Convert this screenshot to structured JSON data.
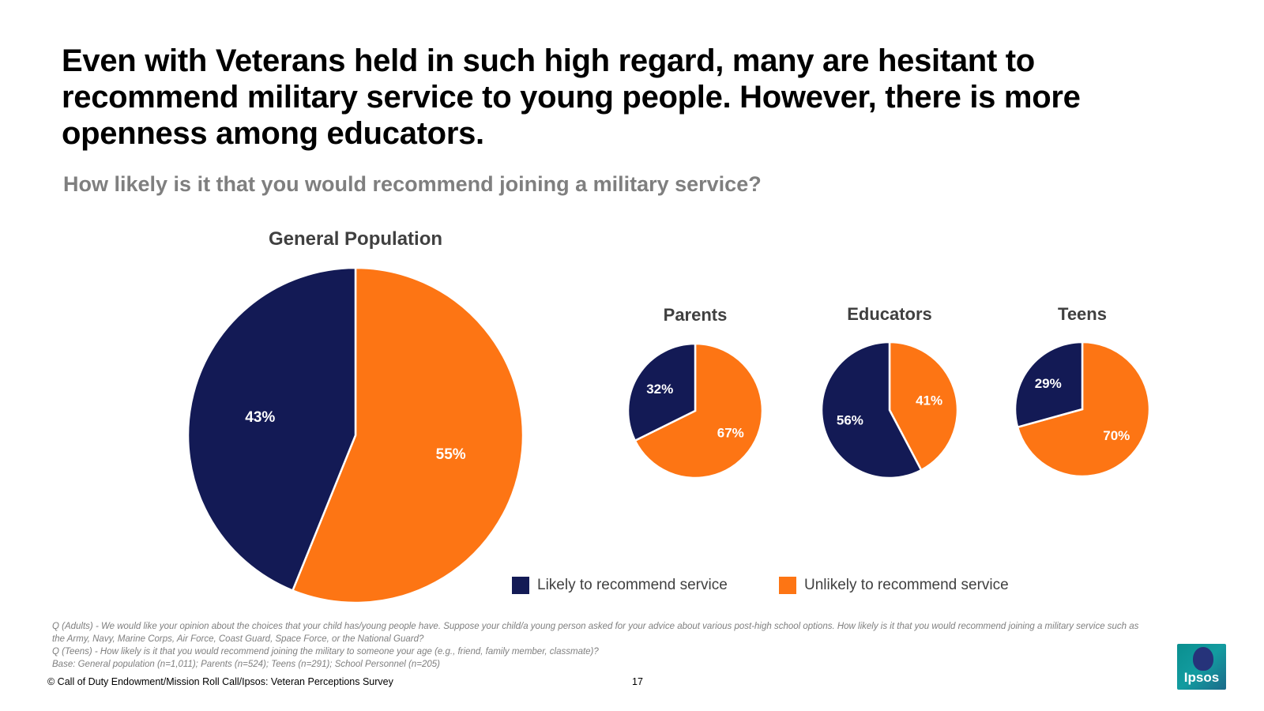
{
  "title": "Even with Veterans held in such high regard, many are hesitant to recommend military service to young people. However, there is more openness among educators.",
  "subtitle": "How likely is it that you would recommend joining a military service?",
  "colors": {
    "likely": "#131a55",
    "unlikely": "#fd7514"
  },
  "chart_data": [
    {
      "type": "pie",
      "title": "General Population",
      "categories": [
        "Likely to recommend service",
        "Unlikely to recommend service"
      ],
      "values": [
        43,
        55
      ],
      "labels": [
        "43%",
        "55%"
      ]
    },
    {
      "type": "pie",
      "title": "Parents",
      "categories": [
        "Likely to recommend service",
        "Unlikely to recommend service"
      ],
      "values": [
        32,
        67
      ],
      "labels": [
        "32%",
        "67%"
      ]
    },
    {
      "type": "pie",
      "title": "Educators",
      "categories": [
        "Likely to recommend service",
        "Unlikely to recommend service"
      ],
      "values": [
        56,
        41
      ],
      "labels": [
        "56%",
        "41%"
      ]
    },
    {
      "type": "pie",
      "title": "Teens",
      "categories": [
        "Likely to recommend service",
        "Unlikely to recommend service"
      ],
      "values": [
        29,
        70
      ],
      "labels": [
        "29%",
        "70%"
      ]
    }
  ],
  "legend": {
    "likely_label": "Likely to recommend service",
    "unlikely_label": "Unlikely to recommend service"
  },
  "notes": [
    "Q (Adults) - We would like your opinion about the choices that your child has/young people have. Suppose your child/a young person asked for your advice about various post-high school options. How likely is it that you would recommend joining a military service such as the Army, Navy, Marine Corps, Air Force, Coast Guard, Space Force, or the National Guard?",
    "Q (Teens) - How likely is it that you would recommend joining the military to someone your age (e.g., friend, family member, classmate)?",
    "Base: General population (n=1,011); Parents (n=524); Teens (n=291); School Personnel (n=205)"
  ],
  "footer": {
    "copyright": "© Call of Duty Endowment/Mission Roll Call/Ipsos: Veteran Perceptions Survey",
    "page_number": "17",
    "logo_text": "Ipsos"
  }
}
